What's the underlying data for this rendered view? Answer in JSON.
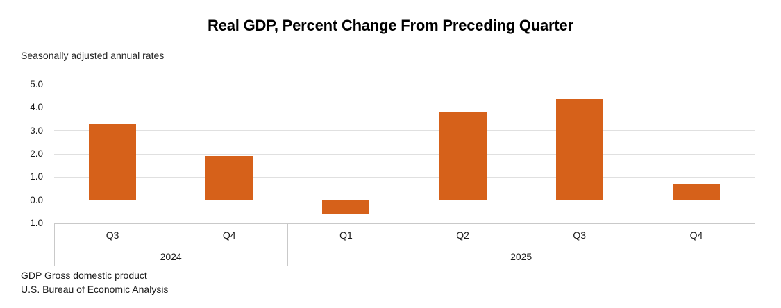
{
  "title": "Real GDP, Percent Change From Preceding Quarter",
  "subtitle": "Seasonally adjusted annual rates",
  "footer": {
    "line1": "GDP Gross domestic product",
    "line2": "U.S. Bureau of Economic Analysis"
  },
  "colors": {
    "bar": "#D6611A",
    "gridline": "#E0E0E0",
    "axis_line": "#C9C9C9",
    "axis_line_faint": "#EAEAEA",
    "text": "#1A1A1A"
  },
  "chart_data": {
    "type": "bar",
    "title": "Real GDP, Percent Change From Preceding Quarter",
    "subtitle": "Seasonally adjusted annual rates",
    "categories": [
      "Q3",
      "Q4",
      "Q1",
      "Q2",
      "Q3",
      "Q4"
    ],
    "values": [
      3.3,
      1.9,
      -0.6,
      3.8,
      4.4,
      0.7
    ],
    "year_groups": [
      {
        "label": "2024",
        "count": 2
      },
      {
        "label": "2025",
        "count": 4
      }
    ],
    "ylim": [
      -1.0,
      5.0
    ],
    "ytick_step": 1.0,
    "ytick_labels": [
      "5.0",
      "4.0",
      "3.0",
      "2.0",
      "1.0",
      "0.0",
      "−1.0"
    ],
    "grid": true,
    "legend": "none",
    "xlabel": "",
    "ylabel": ""
  }
}
